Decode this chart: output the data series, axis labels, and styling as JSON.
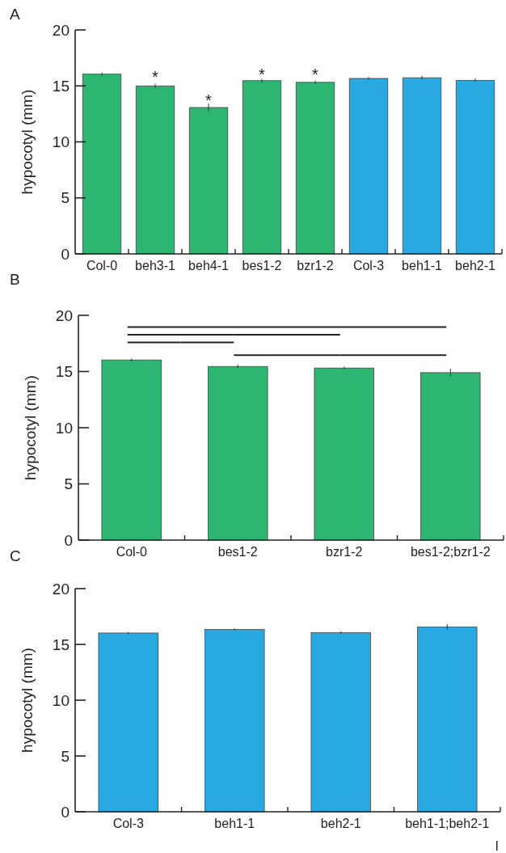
{
  "chart_data": [
    {
      "type": "bar",
      "title": "A",
      "ylabel": "hypocotyl (mm)",
      "categories": [
        "Col-0",
        "beh3-1",
        "beh4-1",
        "bes1-2",
        "bzr1-2",
        "Col-3",
        "beh1-1",
        "beh2-1"
      ],
      "values": [
        16.05,
        15.0,
        13.07,
        15.47,
        15.32,
        15.67,
        15.73,
        15.5
      ],
      "colors": [
        "#2db672",
        "#2db672",
        "#2db672",
        "#2db672",
        "#2db672",
        "#29a9e1",
        "#29a9e1",
        "#29a9e1"
      ],
      "errors": [
        0.15,
        0.2,
        0.35,
        0.15,
        0.15,
        0.12,
        0.15,
        0.15
      ],
      "ylim": [
        0,
        20
      ],
      "yticks": [
        0,
        5,
        10,
        15,
        20
      ],
      "grid": false,
      "annotations": [
        "*",
        "*",
        "*",
        "*"
      ]
    },
    {
      "type": "bar",
      "title": "B",
      "ylabel": "hypocotyl (mm)",
      "categories": [
        "Col-0",
        "bes1-2",
        "bzr1-2",
        "bes1-2;bzr1-2"
      ],
      "values": [
        16.03,
        15.45,
        15.31,
        14.9
      ],
      "colors": [
        "#2db672",
        "#2db672",
        "#2db672",
        "#2db672"
      ],
      "errors": [
        0.12,
        0.15,
        0.12,
        0.35
      ],
      "ylim": [
        0,
        20
      ],
      "yticks": [
        0,
        5,
        10,
        15,
        20
      ],
      "grid": false
    },
    {
      "type": "bar",
      "title": "C",
      "ylabel": "hypocotyl (mm)",
      "categories": [
        "Col-3",
        "beh1-1",
        "beh2-1",
        "beh1-1;beh2-1"
      ],
      "values": [
        16.02,
        16.34,
        16.05,
        16.57
      ],
      "colors": [
        "#29a9e1",
        "#29a9e1",
        "#29a9e1",
        "#29a9e1"
      ],
      "errors": [
        0.1,
        0.08,
        0.1,
        0.25
      ],
      "ylim": [
        0,
        20
      ],
      "yticks": [
        0,
        5,
        10,
        15,
        20
      ],
      "grid": false,
      "annotations": [
        "I"
      ]
    }
  ]
}
